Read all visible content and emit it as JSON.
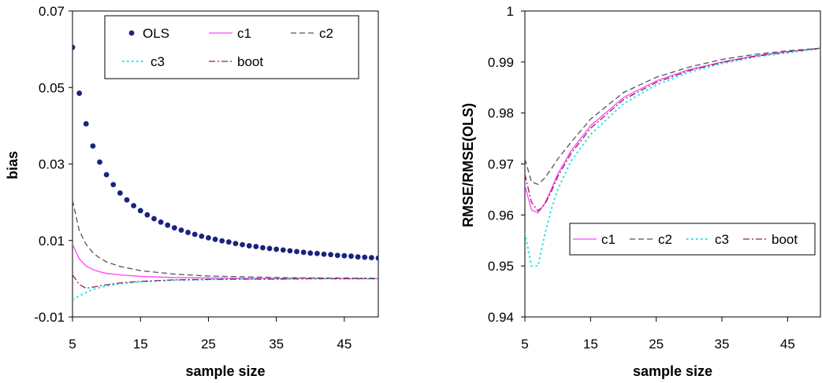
{
  "chart_data": [
    {
      "type": "line",
      "xlabel": "sample size",
      "ylabel": "bias",
      "xlim": [
        5,
        50
      ],
      "ylim": [
        -0.01,
        0.07
      ],
      "xticks": [
        "5",
        "15",
        "25",
        "35",
        "45"
      ],
      "yticks": [
        "-0.01",
        "0.01",
        "0.03",
        "0.05",
        "0.07"
      ],
      "legend_position": "top",
      "colors": {
        "OLS": "#1a237e",
        "c1": "#ff44ff",
        "c2": "#555555",
        "c3": "#33e6e6",
        "boot": "#8b2060"
      },
      "series": [
        {
          "name": "OLS",
          "style": "dots",
          "x": [
            5,
            6,
            7,
            8,
            9,
            10,
            11,
            12,
            13,
            14,
            15,
            16,
            17,
            18,
            19,
            20,
            21,
            22,
            23,
            24,
            25,
            26,
            27,
            28,
            29,
            30,
            31,
            32,
            33,
            34,
            35,
            36,
            37,
            38,
            39,
            40,
            41,
            42,
            43,
            44,
            45,
            46,
            47,
            48,
            49,
            50
          ],
          "values": [
            0.0605,
            0.0485,
            0.0405,
            0.0347,
            0.0305,
            0.0272,
            0.0246,
            0.0224,
            0.0206,
            0.0191,
            0.0178,
            0.0167,
            0.0157,
            0.0148,
            0.014,
            0.0133,
            0.0127,
            0.0121,
            0.0116,
            0.0111,
            0.0107,
            0.0103,
            0.0099,
            0.0096,
            0.0092,
            0.0089,
            0.0086,
            0.0084,
            0.0081,
            0.0079,
            0.0077,
            0.0075,
            0.0073,
            0.0071,
            0.0069,
            0.0067,
            0.0066,
            0.0064,
            0.0063,
            0.0061,
            0.006,
            0.0059,
            0.0057,
            0.0056,
            0.0055,
            0.0054
          ]
        },
        {
          "name": "c1",
          "style": "solid",
          "x": [
            5,
            6,
            7,
            8,
            9,
            10,
            12,
            15,
            20,
            25,
            30,
            35,
            40,
            45,
            50
          ],
          "values": [
            0.009,
            0.0052,
            0.0033,
            0.0024,
            0.0018,
            0.0014,
            0.001,
            0.0006,
            0.0003,
            0.0002,
            0.0001,
            0.0001,
            0.0001,
            0.0,
            0.0
          ]
        },
        {
          "name": "c2",
          "style": "dashed",
          "x": [
            5,
            6,
            7,
            8,
            9,
            10,
            12,
            15,
            20,
            25,
            30,
            35,
            40,
            45,
            50
          ],
          "values": [
            0.0205,
            0.0125,
            0.009,
            0.0068,
            0.0054,
            0.0044,
            0.0032,
            0.0021,
            0.0012,
            0.0007,
            0.0005,
            0.0003,
            0.0002,
            0.0002,
            0.0001
          ]
        },
        {
          "name": "c3",
          "style": "dotted",
          "x": [
            5,
            6,
            7,
            8,
            9,
            10,
            12,
            15,
            20,
            25,
            30,
            35,
            40,
            45,
            50
          ],
          "values": [
            -0.0055,
            -0.0045,
            -0.0036,
            -0.0028,
            -0.0023,
            -0.0019,
            -0.0013,
            -0.0008,
            -0.0004,
            -0.0002,
            -0.0001,
            -0.0001,
            0.0,
            0.0,
            0.0
          ]
        },
        {
          "name": "boot",
          "style": "dashdot",
          "x": [
            5,
            6,
            7,
            8,
            9,
            10,
            12,
            15,
            20,
            25,
            30,
            35,
            40,
            45,
            50
          ],
          "values": [
            0.001,
            -0.0015,
            -0.0025,
            -0.0022,
            -0.0019,
            -0.0016,
            -0.0011,
            -0.0007,
            -0.0003,
            -0.0002,
            -0.0001,
            -0.0001,
            0.0,
            0.0,
            0.0
          ]
        }
      ]
    },
    {
      "type": "line",
      "xlabel": "sample size",
      "ylabel": "RMSE/RMSE(OLS)",
      "xlim": [
        5,
        50
      ],
      "ylim": [
        0.94,
        1.0
      ],
      "xticks": [
        "5",
        "15",
        "25",
        "35",
        "45"
      ],
      "yticks": [
        "0.94",
        "0.95",
        "0.96",
        "0.97",
        "0.98",
        "0.99",
        "1"
      ],
      "legend_position": "center-right",
      "colors": {
        "c1": "#ff44ff",
        "c2": "#555555",
        "c3": "#33e6e6",
        "boot": "#8b2060"
      },
      "series": [
        {
          "name": "c1",
          "style": "solid",
          "x": [
            5,
            6,
            7,
            8,
            9,
            10,
            12,
            15,
            20,
            25,
            30,
            35,
            40,
            45,
            50
          ],
          "values": [
            0.9658,
            0.961,
            0.9604,
            0.9622,
            0.965,
            0.968,
            0.9725,
            0.9775,
            0.983,
            0.9863,
            0.9885,
            0.99,
            0.9912,
            0.992,
            0.9927
          ]
        },
        {
          "name": "c2",
          "style": "dashed",
          "x": [
            5,
            6,
            7,
            8,
            9,
            10,
            12,
            15,
            20,
            25,
            30,
            35,
            40,
            45,
            50
          ],
          "values": [
            0.971,
            0.9665,
            0.966,
            0.9672,
            0.969,
            0.971,
            0.9742,
            0.9788,
            0.984,
            0.987,
            0.989,
            0.9905,
            0.9915,
            0.9922,
            0.9927
          ]
        },
        {
          "name": "c3",
          "style": "dotted",
          "x": [
            5,
            6,
            7,
            8,
            9,
            10,
            12,
            15,
            20,
            25,
            30,
            35,
            40,
            45,
            50
          ],
          "values": [
            0.9565,
            0.95,
            0.95,
            0.956,
            0.961,
            0.965,
            0.9705,
            0.9758,
            0.9818,
            0.9855,
            0.988,
            0.9897,
            0.991,
            0.9918,
            0.9926
          ]
        },
        {
          "name": "boot",
          "style": "dashdot",
          "x": [
            5,
            6,
            7,
            8,
            9,
            10,
            12,
            15,
            20,
            25,
            30,
            35,
            40,
            45,
            50
          ],
          "values": [
            0.968,
            0.9625,
            0.9608,
            0.962,
            0.9645,
            0.9675,
            0.972,
            0.977,
            0.9826,
            0.986,
            0.9883,
            0.9899,
            0.9911,
            0.992,
            0.9927
          ]
        }
      ]
    }
  ]
}
